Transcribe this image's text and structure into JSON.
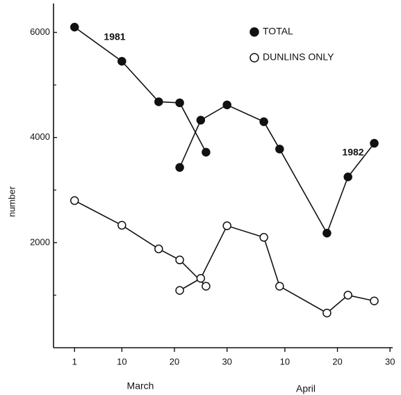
{
  "chart_data": {
    "type": "line",
    "ylabel": "number",
    "month_labels": [
      "March",
      "April"
    ],
    "xlim": [
      -3,
      61.5
    ],
    "ylim": [
      0,
      6550
    ],
    "xticks": [
      1,
      10,
      20,
      30,
      {
        "value": 41,
        "label": "10"
      },
      {
        "value": 51,
        "label": "20"
      },
      {
        "value": 61,
        "label": "30"
      }
    ],
    "yticks": [
      2000,
      4000,
      6000
    ],
    "yminorticks": [
      1000,
      3000,
      5000
    ],
    "color": "#111111",
    "series": [
      {
        "name": "TOTAL",
        "marker_fill": "#111111",
        "lines": [
          {
            "label": "1981",
            "x": [
              1,
              10,
              17,
              21,
              26
            ],
            "values": [
              6100,
              5450,
              4680,
              4660,
              3720
            ]
          },
          {
            "label": "1982",
            "x": [
              21,
              25,
              30,
              37,
              40,
              49,
              53,
              58
            ],
            "values": [
              3430,
              4330,
              4620,
              4300,
              3780,
              2180,
              3250,
              3890
            ]
          }
        ]
      },
      {
        "name": "DUNLINS ONLY",
        "marker_fill": "#ffffff",
        "lines": [
          {
            "x": [
              1,
              10,
              17,
              21,
              26
            ],
            "values": [
              2800,
              2330,
              1880,
              1670,
              1170
            ]
          },
          {
            "x": [
              21,
              25,
              30,
              37,
              40,
              49,
              53,
              58
            ],
            "values": [
              1090,
              1320,
              2320,
              2100,
              1170,
              660,
              1000,
              890
            ]
          }
        ]
      }
    ]
  }
}
